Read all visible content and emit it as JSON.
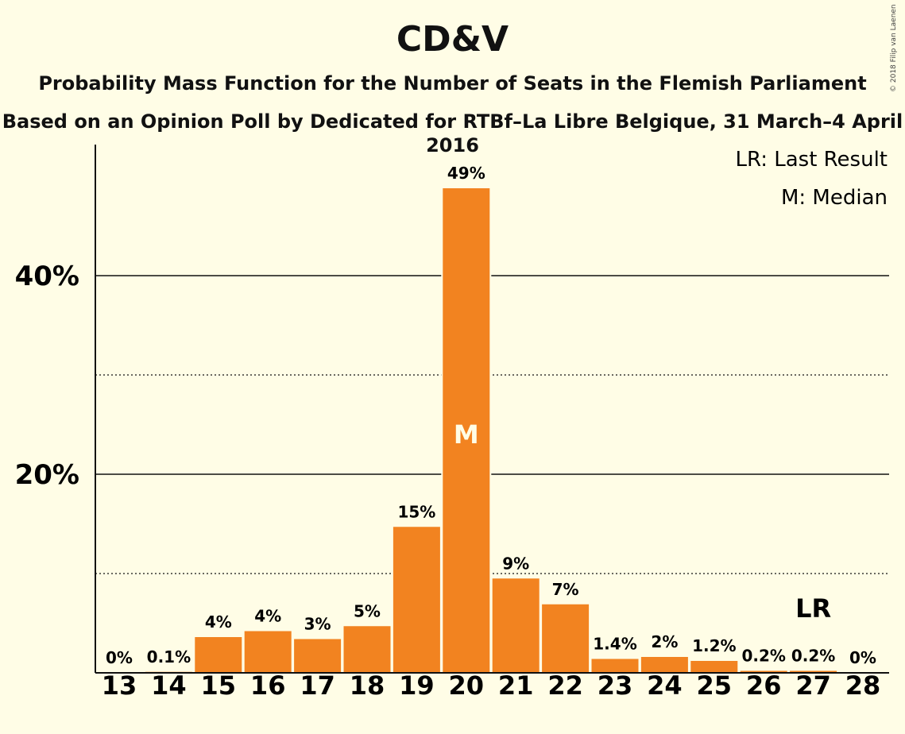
{
  "chart_data": {
    "type": "bar",
    "title": "CD&V",
    "subtitle": "Probability Mass Function for the Number of Seats in the Flemish Parliament",
    "subtitle2": "Based on an Opinion Poll by Dedicated for RTBf–La Libre Belgique, 31 March–4 April 2016",
    "copyright": "© 2018 Filip van Laenen",
    "categories": [
      "13",
      "14",
      "15",
      "16",
      "17",
      "18",
      "19",
      "20",
      "21",
      "22",
      "23",
      "24",
      "25",
      "26",
      "27",
      "28"
    ],
    "values": [
      0,
      0.1,
      3.6,
      4.2,
      3.4,
      4.7,
      14.7,
      48.8,
      9.5,
      6.9,
      1.4,
      1.6,
      1.2,
      0.2,
      0.2,
      0
    ],
    "data_labels": [
      "0%",
      "0.1%",
      "4%",
      "4%",
      "3%",
      "5%",
      "15%",
      "49%",
      "9%",
      "7%",
      "1.4%",
      "2%",
      "1.2%",
      "0.2%",
      "0.2%",
      "0%"
    ],
    "y_ticks": [
      {
        "value": 20,
        "label": "20%"
      },
      {
        "value": 40,
        "label": "40%"
      }
    ],
    "y_minor_gridlines": [
      10,
      30
    ],
    "ylim": [
      0,
      53
    ],
    "median": {
      "category": "20",
      "label": "M"
    },
    "last_result": {
      "category": "27",
      "label": "LR"
    },
    "legend": [
      "LR: Last Result",
      "M: Median"
    ],
    "legend_position": "top-right",
    "bar_color": "#f28320",
    "background": "#fffde6"
  }
}
